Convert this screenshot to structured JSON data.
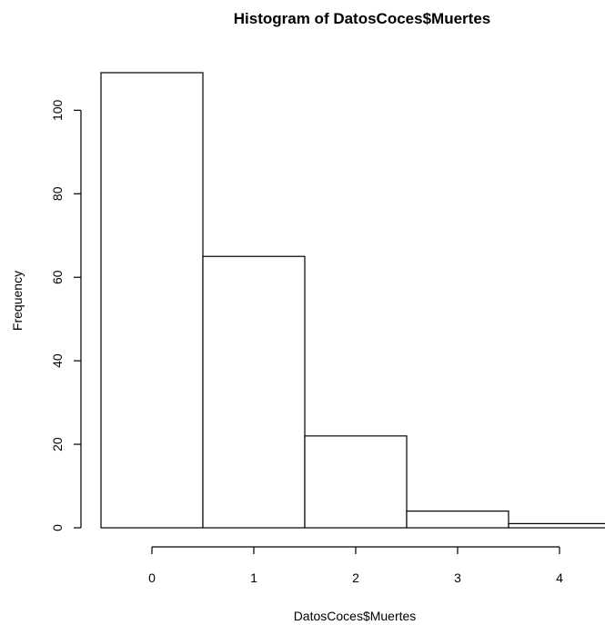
{
  "chart_data": {
    "type": "bar",
    "title": "Histogram of DatosCoces$Muertes",
    "xlabel": "DatosCoces$Muertes",
    "ylabel": "Frequency",
    "bins": [
      {
        "from": -0.5,
        "to": 0.5,
        "count": 109
      },
      {
        "from": 0.5,
        "to": 1.5,
        "count": 65
      },
      {
        "from": 1.5,
        "to": 2.5,
        "count": 22
      },
      {
        "from": 2.5,
        "to": 3.5,
        "count": 4
      },
      {
        "from": 3.5,
        "to": 4.5,
        "count": 1
      }
    ],
    "x_ticks": [
      0,
      1,
      2,
      3,
      4
    ],
    "y_ticks": [
      0,
      20,
      40,
      60,
      80,
      100
    ],
    "xlim": [
      -0.5,
      4.5
    ],
    "ylim": [
      0,
      109
    ],
    "grid": false,
    "colors": {
      "bar_fill": "#ffffff",
      "bar_stroke": "#000000"
    }
  }
}
